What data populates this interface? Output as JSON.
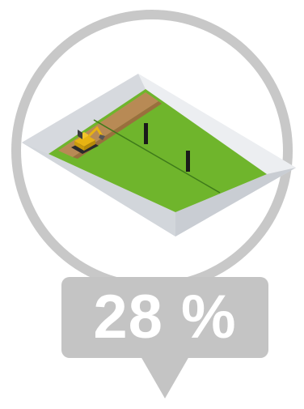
{
  "progress": {
    "percent_value": 28,
    "label": "28 %"
  },
  "illustration": {
    "subject": "excavation-site",
    "colors": {
      "ring": "#c8c8c8",
      "wall_light": "#e6e8eb",
      "wall_shadow": "#cdd1d6",
      "ground": "#6fb52c",
      "dug_soil": "#b88a55",
      "excavator": "#e8b312",
      "posts": "#1a1a1a",
      "callout": "#c4c4c4"
    }
  }
}
